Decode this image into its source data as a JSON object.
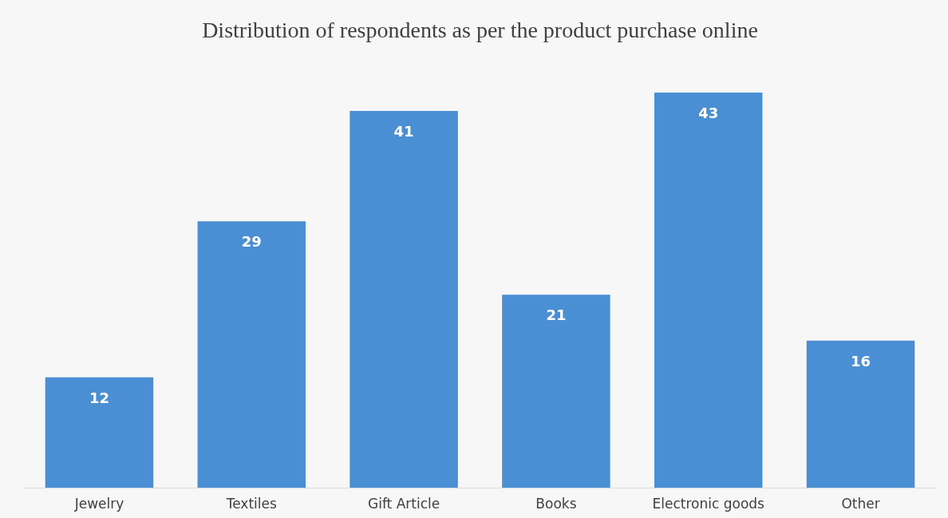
{
  "chart_data": {
    "type": "bar",
    "title": "Distribution of respondents as per the product purchase online",
    "categories": [
      "Jewelry",
      "Textiles",
      "Gift Article",
      "Books",
      "Electronic goods",
      "Other"
    ],
    "values": [
      12,
      29,
      41,
      21,
      43,
      16
    ],
    "color": "#4a8fd4",
    "data_labels": true
  }
}
